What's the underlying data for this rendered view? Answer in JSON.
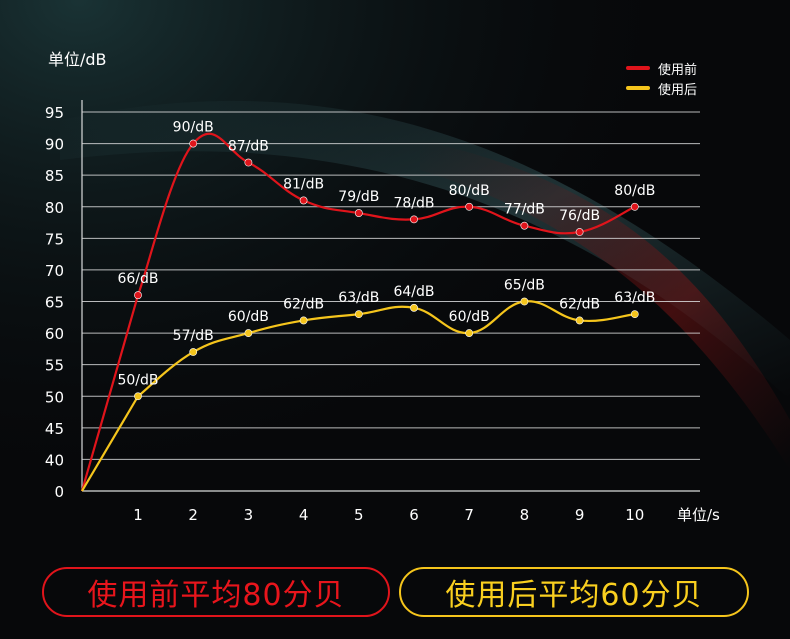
{
  "y_unit_label": "单位/dB",
  "x_unit_label": "单位/s",
  "colors": {
    "before": "#e0141b",
    "after": "#f5c51c"
  },
  "legend": [
    {
      "name": "使用前",
      "color": "#e0141b"
    },
    {
      "name": "使用后",
      "color": "#f5c51c"
    }
  ],
  "badges": {
    "before": "使用前平均80分贝",
    "after": "使用后平均60分贝"
  },
  "chart_data": {
    "type": "line",
    "x_ticks": [
      "1",
      "2",
      "3",
      "4",
      "5",
      "6",
      "7",
      "8",
      "9",
      "10"
    ],
    "y_ticks": [
      "0",
      "40",
      "45",
      "50",
      "55",
      "60",
      "65",
      "70",
      "75",
      "80",
      "85",
      "90",
      "95"
    ],
    "y_tick_values": [
      35,
      40,
      45,
      50,
      55,
      60,
      65,
      70,
      75,
      80,
      85,
      90,
      95
    ],
    "series": [
      {
        "name": "使用前",
        "color": "#e0141b",
        "values": [
          66,
          90,
          87,
          81,
          79,
          78,
          80,
          77,
          76,
          80
        ],
        "labels": [
          "66/dB",
          "90/dB",
          "87/dB",
          "81/dB",
          "79/dB",
          "78/dB",
          "80/dB",
          "77/dB",
          "76/dB",
          "80/dB"
        ]
      },
      {
        "name": "使用后",
        "color": "#f5c51c",
        "values": [
          50,
          57,
          60,
          62,
          63,
          64,
          60,
          65,
          62,
          63
        ],
        "labels": [
          "50/dB",
          "57/dB",
          "60/dB",
          "62/dB",
          "63/dB",
          "64/dB",
          "60/dB",
          "65/dB",
          "62/dB",
          "63/dB"
        ]
      }
    ]
  }
}
